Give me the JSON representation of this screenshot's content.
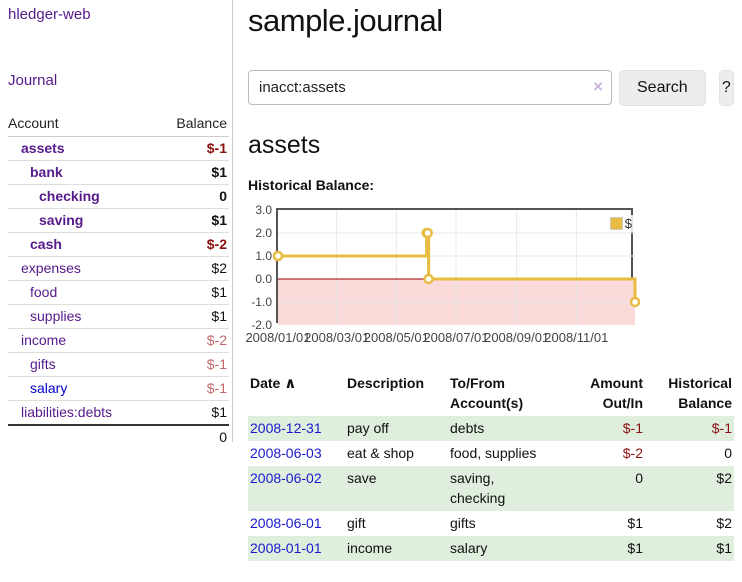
{
  "app": {
    "brand": "hledger-web",
    "nav_journal": "Journal"
  },
  "colors": {
    "link_purple": "#551a8b",
    "link_blue": "#1a1acc",
    "negative_strong": "#8b1010",
    "negative_soft": "#c06868",
    "row_stripe_green": "#dfeedd",
    "series_gold": "#e8bc40"
  },
  "sidebar": {
    "col_account": "Account",
    "col_balance": "Balance",
    "accounts": [
      {
        "name": "assets",
        "balance": "$-1"
      },
      {
        "name": "bank",
        "balance": "$1"
      },
      {
        "name": "checking",
        "balance": "0"
      },
      {
        "name": "saving",
        "balance": "$1"
      },
      {
        "name": "cash",
        "balance": "$-2"
      },
      {
        "name": "expenses",
        "balance": "$2"
      },
      {
        "name": "food",
        "balance": "$1"
      },
      {
        "name": "supplies",
        "balance": "$1"
      },
      {
        "name": "income",
        "balance": "$-2"
      },
      {
        "name": "gifts",
        "balance": "$-1"
      },
      {
        "name": "salary",
        "balance": "$-1"
      },
      {
        "name": "liabilities:debts",
        "balance": "$1"
      }
    ],
    "total": "0"
  },
  "header": {
    "title": "sample.journal"
  },
  "search": {
    "value": "inacct:assets",
    "clear_icon": "×",
    "button_label": "Search",
    "help_label": "?"
  },
  "account_page": {
    "title": "assets",
    "chart_label": "Historical Balance:"
  },
  "chart_data": {
    "type": "line",
    "step": true,
    "title": "Historical Balance:",
    "series": [
      {
        "name": "$",
        "color": "#e8bc40",
        "points": [
          [
            "2008-01-01",
            1
          ],
          [
            "2008-06-01",
            2
          ],
          [
            "2008-06-02",
            2
          ],
          [
            "2008-06-03",
            0
          ],
          [
            "2008-12-31",
            -1
          ]
        ]
      }
    ],
    "x_range": [
      "2008-01-01",
      "2008-12-31"
    ],
    "ylim": [
      -2,
      3
    ],
    "y_ticks": [
      "3.0",
      "2.0",
      "1.0",
      "0.0",
      "-1.0",
      "-2.0"
    ],
    "x_ticks": [
      "2008/01/01",
      "2008/03/01",
      "2008/05/01",
      "2008/07/01",
      "2008/09/01",
      "2008/11/01"
    ],
    "grid": true,
    "legend_position": "top-right",
    "negative_fill": "#fbdada",
    "zero_line_color": "#990000",
    "grid_color": "#e8e8e8"
  },
  "register": {
    "headers": {
      "date": "Date",
      "sort_icon": "∧",
      "description": "Description",
      "tofrom": "To/From Account(s)",
      "amount": "Amount Out/In",
      "balance": "Historical Balance"
    },
    "rows": [
      {
        "date": "2008-12-31",
        "description": "pay off",
        "accounts": "debts",
        "amount": "$-1",
        "balance": "$-1"
      },
      {
        "date": "2008-06-03",
        "description": "eat & shop",
        "accounts": "food, supplies",
        "amount": "$-2",
        "balance": "0"
      },
      {
        "date": "2008-06-02",
        "description": "save",
        "accounts": "saving, checking",
        "amount": "0",
        "balance": "$2"
      },
      {
        "date": "2008-06-01",
        "description": "gift",
        "accounts": "gifts",
        "amount": "$1",
        "balance": "$2"
      },
      {
        "date": "2008-01-01",
        "description": "income",
        "accounts": "salary",
        "amount": "$1",
        "balance": "$1"
      }
    ]
  }
}
